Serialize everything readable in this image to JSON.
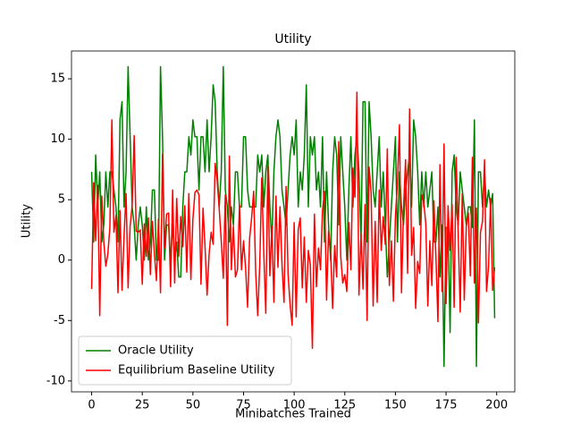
{
  "chart_data": {
    "type": "line",
    "title": "Utility",
    "xlabel": "Minibatches Trained",
    "ylabel": "Utility",
    "x": [
      0,
      1,
      2,
      3,
      4,
      5,
      6,
      7,
      8,
      9,
      10,
      11,
      12,
      13,
      14,
      15,
      16,
      17,
      18,
      19,
      20,
      21,
      22,
      23,
      24,
      25,
      26,
      27,
      28,
      29,
      30,
      31,
      32,
      33,
      34,
      35,
      36,
      37,
      38,
      39,
      40,
      41,
      42,
      43,
      44,
      45,
      46,
      47,
      48,
      49,
      50,
      51,
      52,
      53,
      54,
      55,
      56,
      57,
      58,
      59,
      60,
      61,
      62,
      63,
      64,
      65,
      66,
      67,
      68,
      69,
      70,
      71,
      72,
      73,
      74,
      75,
      76,
      77,
      78,
      79,
      80,
      81,
      82,
      83,
      84,
      85,
      86,
      87,
      88,
      89,
      90,
      91,
      92,
      93,
      94,
      95,
      96,
      97,
      98,
      99,
      100,
      101,
      102,
      103,
      104,
      105,
      106,
      107,
      108,
      109,
      110,
      111,
      112,
      113,
      114,
      115,
      116,
      117,
      118,
      119,
      120,
      121,
      122,
      123,
      124,
      125,
      126,
      127,
      128,
      129,
      130,
      131,
      132,
      133,
      134,
      135,
      136,
      137,
      138,
      139,
      140,
      141,
      142,
      143,
      144,
      145,
      146,
      147,
      148,
      149,
      150,
      151,
      152,
      153,
      154,
      155,
      156,
      157,
      158,
      159,
      160,
      161,
      162,
      163,
      164,
      165,
      166,
      167,
      168,
      169,
      170,
      171,
      172,
      173,
      174,
      175,
      176,
      177,
      178,
      179,
      180,
      181,
      182,
      183,
      184,
      185,
      186,
      187,
      188,
      189,
      190,
      191,
      192,
      193,
      194,
      195,
      196,
      197,
      198,
      199
    ],
    "series": [
      {
        "name": "Oracle Utility",
        "color": "#008000",
        "values": [
          7.3,
          1.5,
          8.7,
          4.4,
          7.3,
          1.5,
          2.9,
          7.3,
          4.4,
          7.3,
          7.3,
          5.8,
          4.4,
          1.5,
          11.6,
          13.1,
          4.4,
          7.3,
          16,
          10.2,
          4.4,
          2.9,
          0,
          2.9,
          4.4,
          2.9,
          0,
          4.4,
          0,
          1.5,
          5.8,
          5.8,
          0,
          0,
          16,
          10.2,
          0,
          2.9,
          2.9,
          0,
          2.9,
          0,
          1.5,
          -1.4,
          -1.4,
          4.4,
          7.3,
          7.3,
          10.2,
          8.7,
          11.6,
          10.2,
          10.2,
          5.8,
          10.2,
          10.2,
          7.3,
          11.6,
          7.3,
          10.2,
          14.5,
          13.1,
          7.3,
          4.4,
          7.3,
          16,
          5.8,
          4.4,
          1.5,
          4.4,
          2.9,
          7.3,
          7.3,
          4.4,
          4.4,
          10.2,
          10.2,
          5.8,
          4.4,
          4.4,
          4.4,
          4.4,
          8.7,
          7.3,
          8.7,
          4.4,
          7.3,
          8.7,
          4.4,
          1.5,
          7.3,
          10.2,
          11.6,
          10.2,
          5.8,
          4.4,
          2.9,
          5.8,
          8.7,
          10.2,
          8.7,
          11.6,
          4.4,
          7.3,
          5.8,
          8.7,
          14.5,
          4.4,
          10.2,
          8.7,
          10.2,
          5.8,
          7.3,
          4.4,
          10.2,
          1.5,
          7.3,
          2.9,
          0,
          7.3,
          10.2,
          8.7,
          2.9,
          10.2,
          7.3,
          4.4,
          0,
          5.8,
          10.2,
          4.4,
          8.7,
          10.2,
          7.3,
          1.5,
          13.1,
          13.1,
          1.5,
          13.1,
          10.2,
          5.8,
          4.4,
          7.3,
          10.2,
          4.4,
          7.3,
          2.9,
          -1.4,
          1.5,
          4.4,
          7.3,
          10.2,
          1.5,
          7.3,
          4.4,
          2.9,
          5.8,
          7.3,
          8.7,
          4.4,
          11.6,
          10.2,
          7.3,
          2.9,
          7.3,
          4.4,
          7.3,
          4.4,
          5.8,
          7.3,
          1.5,
          1.5,
          4.4,
          -1.4,
          2.9,
          -8.8,
          2.7,
          2.7,
          -6,
          7.3,
          8.7,
          4.4,
          2.9,
          7.3,
          5.8,
          4.4,
          2.9,
          4.4,
          4.4,
          2.7,
          11.6,
          -8.8,
          7.3,
          7.3,
          4.4,
          7.3,
          4.4,
          5.8,
          4.4,
          5.5,
          -4.8
        ]
      },
      {
        "name": "Equilibrium Baseline Utility",
        "color": "#ff0000",
        "values": [
          -2.4,
          6.4,
          1.6,
          6.2,
          -4.6,
          5.3,
          1.5,
          -0.5,
          0.5,
          2.7,
          11.6,
          2.3,
          3.7,
          -2.7,
          4.1,
          -2.5,
          2,
          5.5,
          -2.3,
          2.8,
          4.5,
          10.3,
          2.4,
          2.3,
          2.5,
          -2,
          3,
          0.3,
          3.5,
          -1.2,
          3.2,
          0.5,
          -1.7,
          3.4,
          -2.7,
          8.8,
          1,
          3.8,
          3.9,
          -2.2,
          5.8,
          -1.9,
          5.1,
          0.3,
          3.6,
          1.1,
          4.5,
          -1,
          5.5,
          -1.6,
          3.4,
          5.6,
          5.8,
          5.4,
          -2,
          4.3,
          1.1,
          -2.9,
          0.5,
          2.3,
          1.3,
          8,
          6.6,
          4.2,
          1.6,
          -1.5,
          5.4,
          -5.4,
          8.6,
          -0.8,
          2.8,
          -1.4,
          -0.8,
          4.6,
          -0.8,
          1.6,
          -0.6,
          -3.9,
          1.8,
          3.5,
          5.7,
          -1,
          -4.6,
          -0.4,
          6.8,
          0.6,
          -4.4,
          7.8,
          -1.3,
          2.8,
          -3.5,
          5.3,
          -0.6,
          4.4,
          -0.4,
          -3.5,
          6.1,
          -1.2,
          -3.7,
          -5.4,
          3.1,
          -4.7,
          2.5,
          3.5,
          -2.3,
          1.9,
          -3.5,
          0.8,
          -0.4,
          -7.3,
          3.8,
          -2.2,
          1,
          -0.8,
          4.1,
          5.7,
          -3.3,
          2.4,
          0.6,
          -4,
          1.2,
          -1.4,
          9.8,
          0.3,
          -1.9,
          -1.2,
          -2.6,
          3.1,
          -0.8,
          7.6,
          5.2,
          13.9,
          -2.9,
          2.2,
          -2.4,
          4.6,
          -5,
          7.7,
          5.6,
          -3.8,
          3.2,
          -3.5,
          5.8,
          0.8,
          3.6,
          1.3,
          9.2,
          -2.1,
          1.6,
          -3.4,
          3.6,
          6.4,
          11.2,
          -2.7,
          4.2,
          8.3,
          -1.1,
          12.5,
          0.4,
          2.7,
          -4,
          -0.1,
          -1.1,
          5.4,
          4.8,
          3,
          -3.8,
          1.6,
          -2.1,
          4.9,
          0.3,
          -5.1,
          7.9,
          -2.6,
          9.6,
          -3.6,
          4.5,
          0.8,
          4.6,
          -3.9,
          8.5,
          2.2,
          -4.3,
          5.5,
          -3.3,
          2.8,
          3.9,
          -1.3,
          8.5,
          -1.9,
          4.3,
          -5.2,
          2.3,
          3.2,
          8.3,
          -2.6,
          -0.5,
          5.1,
          -2.5,
          -0.6
        ]
      }
    ],
    "xlim": [
      -9.95,
      208.95
    ],
    "ylim": [
      -10.9,
      17.3
    ],
    "xticks": [
      0,
      25,
      50,
      75,
      100,
      125,
      150,
      175,
      200
    ],
    "yticks": [
      -10,
      -5,
      0,
      5,
      10,
      15
    ],
    "legend": "lower left"
  }
}
